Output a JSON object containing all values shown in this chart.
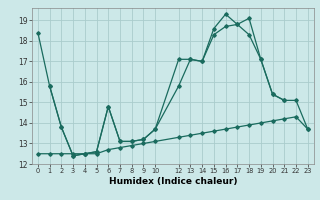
{
  "xlabel": "Humidex (Indice chaleur)",
  "bg_color": "#cce8e8",
  "grid_color": "#aacccc",
  "line_color": "#1a6b5e",
  "xlim": [
    -0.5,
    23.5
  ],
  "ylim": [
    12,
    19.6
  ],
  "yticks": [
    12,
    13,
    14,
    15,
    16,
    17,
    18,
    19
  ],
  "xtick_pos": [
    0,
    1,
    2,
    3,
    4,
    5,
    6,
    7,
    8,
    9,
    10,
    12,
    13,
    14,
    15,
    16,
    17,
    18,
    19,
    20,
    21,
    22,
    23
  ],
  "xtick_labels": [
    "0",
    "1",
    "2",
    "3",
    "4",
    "5",
    "6",
    "7",
    "8",
    "9",
    "10",
    "12",
    "13",
    "14",
    "15",
    "16",
    "17",
    "18",
    "19",
    "20",
    "21",
    "22",
    "23"
  ],
  "s1_x": [
    0,
    1,
    2,
    3,
    4,
    5,
    6,
    7,
    8,
    9,
    10,
    12,
    13,
    14,
    15,
    16,
    17,
    18,
    19,
    20,
    21
  ],
  "s1_y": [
    18.4,
    15.8,
    13.8,
    12.4,
    12.5,
    12.6,
    14.8,
    13.1,
    13.1,
    13.2,
    13.7,
    17.1,
    17.1,
    17.0,
    18.6,
    19.3,
    18.8,
    19.1,
    17.1,
    15.4,
    15.1
  ],
  "s2_x": [
    1,
    2,
    3,
    4,
    5,
    6,
    7,
    8,
    9,
    10,
    12,
    13,
    14,
    15,
    16,
    17,
    18,
    19,
    20,
    21,
    22,
    23
  ],
  "s2_y": [
    15.8,
    13.8,
    12.4,
    12.5,
    12.6,
    14.8,
    13.1,
    13.1,
    13.2,
    13.7,
    15.8,
    17.1,
    17.0,
    18.3,
    18.7,
    18.8,
    18.3,
    17.1,
    15.4,
    15.1,
    15.1,
    13.7
  ],
  "s3_x": [
    0,
    1,
    2,
    3,
    4,
    5,
    6,
    7,
    8,
    9,
    10,
    12,
    13,
    14,
    15,
    16,
    17,
    18,
    19,
    20,
    21,
    22,
    23
  ],
  "s3_y": [
    12.5,
    12.5,
    12.5,
    12.5,
    12.5,
    12.5,
    12.7,
    12.8,
    12.9,
    13.0,
    13.1,
    13.3,
    13.4,
    13.5,
    13.6,
    13.7,
    13.8,
    13.9,
    14.0,
    14.1,
    14.2,
    14.3,
    13.7
  ]
}
